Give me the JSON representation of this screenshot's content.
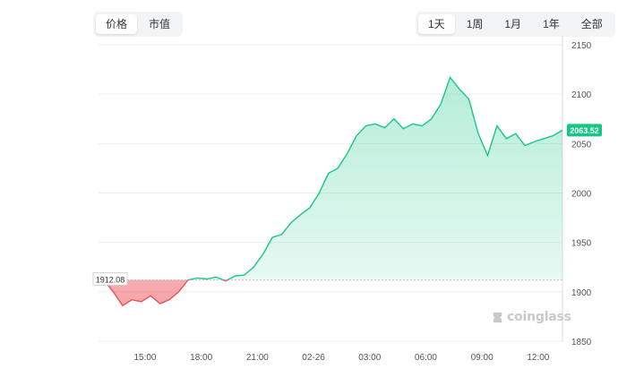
{
  "tabs_metric": {
    "items": [
      "价格",
      "市值"
    ],
    "active": 0
  },
  "tabs_range": {
    "items": [
      "1天",
      "1周",
      "1月",
      "1年",
      "全部"
    ],
    "active": 0
  },
  "watermark": "coinglass",
  "colors": {
    "up_line": "#16c784",
    "down_line": "#e8505b",
    "up_fill": "#16c784",
    "down_fill": "#ea3943",
    "baseline": "#c8c8c8"
  },
  "chart_data": {
    "type": "area",
    "title": "",
    "xlabel": "",
    "ylabel": "",
    "ylim": [
      1850,
      2150
    ],
    "y_ticks": [
      2150,
      2100,
      2050,
      2000,
      1950,
      1900,
      1850
    ],
    "x_ticks": [
      "15:00",
      "18:00",
      "21:00",
      "02-26",
      "03:00",
      "06:00",
      "09:00",
      "12:00"
    ],
    "baseline_value": 1912.08,
    "baseline_label": "1912.08",
    "last_value": 2063.52,
    "last_label": "2063.52",
    "grid": true,
    "x_hours": [
      0,
      0.5,
      1,
      1.5,
      2,
      2.5,
      3,
      3.5,
      4,
      4.5,
      5,
      5.5,
      6,
      6.5,
      7,
      7.5,
      8,
      8.5,
      9,
      9.5,
      10,
      10.5,
      11,
      11.5,
      12,
      12.5,
      13,
      13.5,
      14,
      14.5,
      15,
      15.5,
      16,
      16.5,
      17,
      17.5,
      18,
      18.5,
      19,
      19.5,
      20,
      20.5,
      21,
      21.5,
      22,
      22.5,
      23,
      23.5,
      24,
      24.5
    ],
    "values": [
      1912,
      1900,
      1886,
      1892,
      1890,
      1896,
      1888,
      1892,
      1900,
      1912,
      1914,
      1913,
      1915,
      1911,
      1916,
      1917,
      1925,
      1938,
      1955,
      1958,
      1970,
      1978,
      1985,
      2000,
      2020,
      2025,
      2040,
      2058,
      2068,
      2070,
      2066,
      2075,
      2065,
      2070,
      2068,
      2075,
      2090,
      2117,
      2105,
      2095,
      2060,
      2038,
      2068,
      2055,
      2060,
      2048,
      2052,
      2055,
      2058,
      2063.52
    ]
  }
}
